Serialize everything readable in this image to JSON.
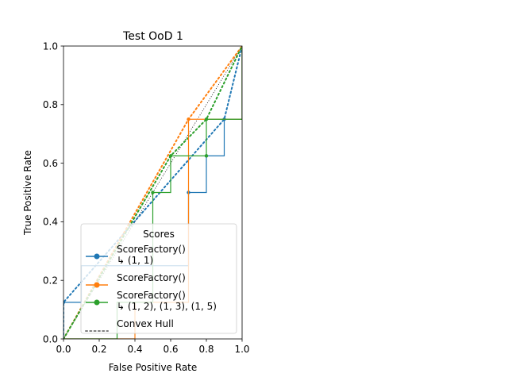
{
  "chart_data": {
    "type": "line",
    "title": "Test OoD 1",
    "xlabel": "False Positive Rate",
    "ylabel": "True Positive Rate",
    "xlim": [
      0,
      1
    ],
    "ylim": [
      0,
      1
    ],
    "xticks": [
      "0.0",
      "0.2",
      "0.4",
      "0.6",
      "0.8",
      "1.0"
    ],
    "yticks": [
      "0.0",
      "0.2",
      "0.4",
      "0.6",
      "0.8",
      "1.0"
    ],
    "grid": false,
    "legend": {
      "title": "Scores",
      "placement": "lower-left",
      "entries": [
        {
          "label": [
            "ScoreFactory()",
            "↳ (1, 1)"
          ],
          "style": "solid",
          "marker": true,
          "color": "#1f77b4"
        },
        {
          "label": [
            "ScoreFactory()"
          ],
          "style": "solid",
          "marker": true,
          "color": "#ff7f0e"
        },
        {
          "label": [
            "ScoreFactory()",
            "↳ (1, 2), (1, 3), (1, 5)"
          ],
          "style": "solid",
          "marker": true,
          "color": "#2ca02c"
        },
        {
          "label": [
            "Convex Hull"
          ],
          "style": "dotted",
          "marker": false,
          "color": "#808080"
        }
      ]
    },
    "series": [
      {
        "color": "#1f77b4",
        "roc": [
          [
            0,
            0
          ],
          [
            0,
            0.125
          ],
          [
            0.1,
            0.125
          ],
          [
            0.1,
            0.25
          ],
          [
            0.7,
            0.25
          ],
          [
            0.7,
            0.5
          ],
          [
            0.8,
            0.5
          ],
          [
            0.8,
            0.625
          ],
          [
            0.9,
            0.625
          ],
          [
            0.9,
            0.75
          ],
          [
            1,
            0.75
          ],
          [
            1,
            1
          ]
        ],
        "markers": [
          [
            0,
            0.125
          ],
          [
            0.7,
            0.5
          ],
          [
            0.8,
            0.625
          ],
          [
            0.9,
            0.75
          ]
        ],
        "hull": [
          [
            0,
            0
          ],
          [
            0,
            0.125
          ],
          [
            0.9,
            0.75
          ],
          [
            1,
            1
          ]
        ]
      },
      {
        "color": "#ff7f0e",
        "roc": [
          [
            0,
            0
          ],
          [
            0.4,
            0
          ],
          [
            0.4,
            0.125
          ],
          [
            0.7,
            0.125
          ],
          [
            0.7,
            0.75
          ],
          [
            1,
            0.75
          ],
          [
            1,
            1
          ]
        ],
        "markers": [
          [
            0.7,
            0.75
          ]
        ],
        "hull": [
          [
            0,
            0
          ],
          [
            0.7,
            0.75
          ],
          [
            1,
            1
          ]
        ]
      },
      {
        "color": "#2ca02c",
        "roc": [
          [
            0,
            0
          ],
          [
            0.3,
            0
          ],
          [
            0.3,
            0.125
          ],
          [
            0.5,
            0.125
          ],
          [
            0.5,
            0.5
          ],
          [
            0.6,
            0.5
          ],
          [
            0.6,
            0.625
          ],
          [
            0.8,
            0.625
          ],
          [
            0.8,
            0.75
          ],
          [
            1,
            0.75
          ],
          [
            1,
            1
          ]
        ],
        "markers": [
          [
            0.5,
            0.5
          ],
          [
            0.6,
            0.625
          ],
          [
            0.8,
            0.625
          ],
          [
            0.8,
            0.75
          ]
        ],
        "hull": [
          [
            0,
            0
          ],
          [
            0.6,
            0.625
          ],
          [
            0.8,
            0.75
          ],
          [
            1,
            1
          ]
        ]
      }
    ],
    "reference_line": [
      [
        0,
        0
      ],
      [
        1,
        1
      ]
    ]
  }
}
